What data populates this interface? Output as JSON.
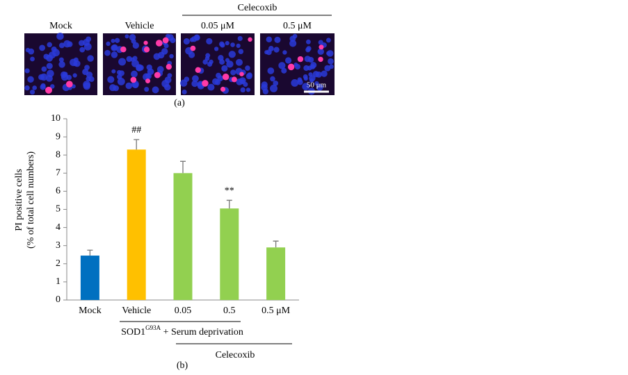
{
  "panel_a": {
    "labels": [
      "Mock",
      "Vehicle",
      "0.05 μM",
      "0.5 μM"
    ],
    "group_label": "Celecoxib",
    "scale_bar": "50 μm",
    "caption": "(a)"
  },
  "chart_data": {
    "type": "bar",
    "y_label": [
      "PI positive cells",
      "(% of total cell numbers)"
    ],
    "categories": [
      "Mock",
      "Vehicle",
      "0.05",
      "0.5",
      "0.5 μM"
    ],
    "values": [
      2.45,
      8.3,
      7.0,
      5.05,
      2.9
    ],
    "errors": [
      0.3,
      0.55,
      0.65,
      0.45,
      0.35
    ],
    "colors": [
      "#0070c0",
      "#ffc000",
      "#92d050",
      "#92d050",
      "#92d050"
    ],
    "annotations": [
      {
        "text": "##",
        "category": "Vehicle"
      },
      {
        "text": "**",
        "category": "0.5"
      }
    ],
    "group_label": {
      "main": "SOD1",
      "sup": "G93A",
      "rest": " + Serum deprivation"
    },
    "treatment_label": "Celecoxib",
    "caption": "(b)",
    "ylim": [
      0,
      10
    ],
    "yticks": [
      0,
      1,
      2,
      3,
      4,
      5,
      6,
      7,
      8,
      9,
      10
    ]
  }
}
